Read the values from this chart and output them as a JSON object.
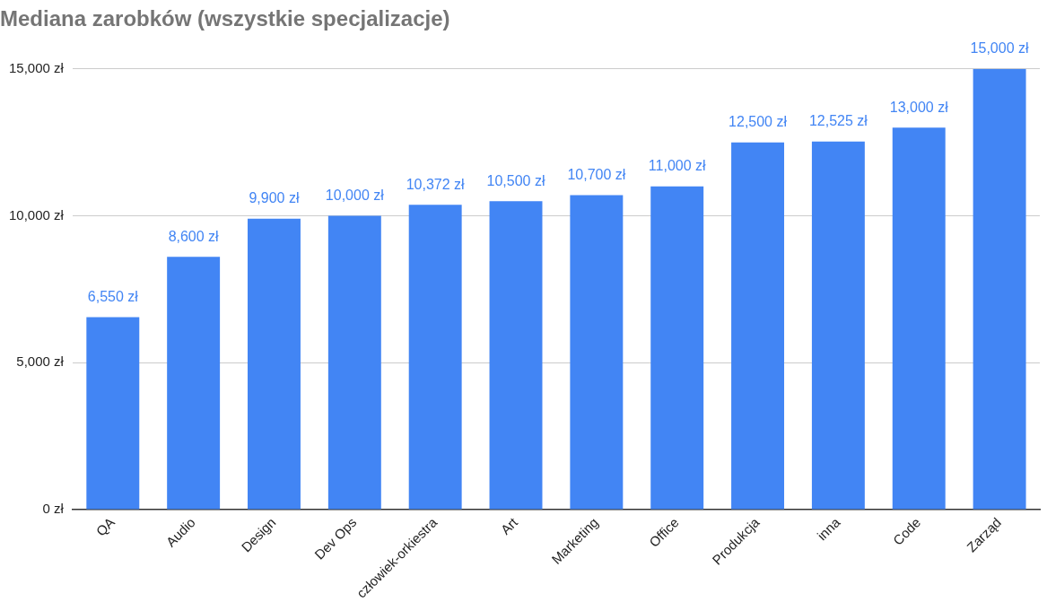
{
  "chart_data": {
    "type": "bar",
    "title": "Mediana zarobków (wszystkie specjalizacje)",
    "categories": [
      "QA",
      "Audio",
      "Design",
      "Dev Ops",
      "człowiek-orkiestra",
      "Art",
      "Marketing",
      "Office",
      "Produkcja",
      "inna",
      "Code",
      "Zarząd"
    ],
    "values": [
      6550,
      8600,
      9900,
      10000,
      10372,
      10500,
      10700,
      11000,
      12500,
      12525,
      13000,
      15000
    ],
    "value_labels": [
      "6,550 zł",
      "8,600 zł",
      "9,900 zł",
      "10,000 zł",
      "10,372 zł",
      "10,500 zł",
      "10,700 zł",
      "11,000 zł",
      "12,500 zł",
      "12,525 zł",
      "13,000 zł",
      "15,000 zł"
    ],
    "color": "#4285f4",
    "ylim": [
      0,
      15000
    ],
    "yticks": [
      {
        "value": 0,
        "label": "0 zł"
      },
      {
        "value": 5000,
        "label": "5,000 zł"
      },
      {
        "value": 10000,
        "label": "10,000 zł"
      },
      {
        "value": 15000,
        "label": "15,000 zł"
      }
    ],
    "grid": "y",
    "legend": false
  }
}
